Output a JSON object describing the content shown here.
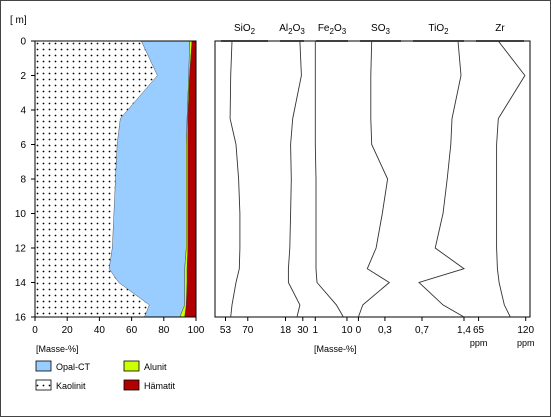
{
  "chart_data": [
    {
      "type": "area",
      "orientation": "depth-profile (stacked, horizontal)",
      "y_axis_unit_label": "[ m]",
      "y_axis_note": "depth increases downward",
      "ylim": [
        0,
        16
      ],
      "y_ticks": [
        "0",
        "2",
        "4",
        "6",
        "8",
        "10",
        "12",
        "14",
        "16"
      ],
      "xlim": [
        0,
        100
      ],
      "x_ticks": [
        "0",
        "20",
        "40",
        "60",
        "80",
        "100"
      ],
      "xlabel": "[Masse-%]",
      "depth": [
        0,
        2,
        4.5,
        6,
        8,
        10,
        12,
        13.2,
        14,
        15.3,
        16
      ],
      "series": [
        {
          "name": "Kaolinit",
          "color": "#ffffff",
          "pattern": "dots",
          "cumulative_upper": [
            66,
            76,
            53,
            51,
            50,
            49,
            48,
            46,
            52,
            71,
            68
          ]
        },
        {
          "name": "Opal-CT",
          "color": "#99ccff",
          "cumulative_upper": [
            96,
            95.5,
            94.5,
            94,
            94,
            94,
            94,
            93,
            93,
            93,
            90
          ]
        },
        {
          "name": "Alunit",
          "color": "#ccff00",
          "cumulative_upper": [
            97.5,
            96,
            95,
            95,
            95,
            95,
            95,
            94.5,
            94.5,
            94,
            93
          ]
        },
        {
          "name": "Hämatit",
          "color": "#b00000",
          "cumulative_upper": [
            100,
            100,
            100,
            100,
            100,
            100,
            100,
            100,
            100,
            100,
            100
          ]
        }
      ],
      "legend": [
        {
          "name": "Opal-CT",
          "color": "#99ccff",
          "pattern": "solid"
        },
        {
          "name": "Alunit",
          "color": "#ccff00",
          "pattern": "solid"
        },
        {
          "name": "Kaolinit",
          "color": "#ffffff",
          "pattern": "dots"
        },
        {
          "name": "Hämatit",
          "color": "#b00000",
          "pattern": "solid"
        }
      ],
      "legend_position": "bottom-left"
    },
    {
      "type": "line",
      "orientation": "depth-profile panels",
      "shared_xlabel": "[Masse-%]",
      "depth": [
        0,
        2,
        4.5,
        6,
        8,
        10,
        12,
        13.2,
        14,
        15.3,
        16
      ],
      "panels": [
        {
          "key": "sio2",
          "title_base": "SiO",
          "title_sub": "2",
          "title_tail": "",
          "unit": "",
          "xlim": [
            45,
            90
          ],
          "ticks": [
            "53",
            "70"
          ],
          "tick_values": [
            53,
            70
          ],
          "values": [
            58,
            57,
            56.5,
            61,
            63,
            64,
            64,
            63.5,
            61,
            58,
            57
          ]
        },
        {
          "key": "al2o3",
          "title_base": "Al",
          "title_sub": "2",
          "title_tail": "O",
          "title_sub2": "3",
          "unit": "",
          "xlim": [
            10,
            35
          ],
          "ticks": [
            "18",
            "30"
          ],
          "tick_values": [
            18,
            30
          ],
          "values": [
            28,
            29,
            23,
            21.5,
            22,
            21.5,
            21,
            20,
            20,
            28,
            26
          ]
        },
        {
          "key": "fe2o3",
          "title_base": "Fe",
          "title_sub": "2",
          "title_tail": "O",
          "title_sub2": "3",
          "unit": "",
          "xlim": [
            -0.5,
            12
          ],
          "ticks": [
            "1",
            "10"
          ],
          "tick_values": [
            1,
            10
          ],
          "values": [
            1,
            1,
            1,
            1,
            1.2,
            1.2,
            1.2,
            1.2,
            1.5,
            7,
            9
          ]
        },
        {
          "key": "so3",
          "title_base": "SO",
          "title_sub": "3",
          "title_tail": "",
          "unit": "",
          "xlim": [
            -0.05,
            0.55
          ],
          "ticks": [
            "0",
            "0,3"
          ],
          "tick_values": [
            0,
            0.3
          ],
          "values": [
            0.15,
            0.14,
            0.14,
            0.15,
            0.33,
            0.27,
            0.2,
            0.1,
            0.35,
            0.05,
            0
          ]
        },
        {
          "key": "tio2",
          "title_base": "TiO",
          "title_sub": "2",
          "title_tail": "",
          "unit": "",
          "xlim": [
            0.45,
            1.5
          ],
          "ticks": [
            "0,7",
            "1,4"
          ],
          "tick_values": [
            0.7,
            1.4
          ],
          "values": [
            1.3,
            1.35,
            1.2,
            1.18,
            1.12,
            1.05,
            0.92,
            1.4,
            0.65,
            1.05,
            1.4
          ]
        },
        {
          "key": "zr",
          "title_base": "Zr",
          "title_sub": "",
          "title_tail": "",
          "unit": "ppm",
          "xlim": [
            55,
            125
          ],
          "ticks": [
            "65",
            "120"
          ],
          "tick_values": [
            65,
            120
          ],
          "values": [
            88,
            119,
            88,
            86,
            86,
            86,
            86,
            87,
            89,
            95,
            102
          ]
        }
      ],
      "tick_unit_label": "ppm"
    }
  ]
}
